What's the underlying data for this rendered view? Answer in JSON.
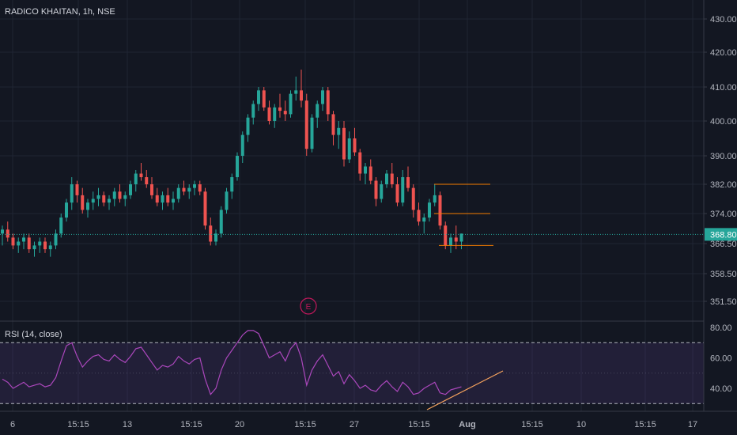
{
  "chart_data": [
    {
      "type": "candlestick",
      "title": "RADICO KHAITAN, 1h, NSE",
      "yaxis": {
        "ticks": [
          "430.00",
          "420.00",
          "410.00",
          "400.00",
          "390.00",
          "382.00",
          "374.00",
          "366.50",
          "358.50",
          "351.50"
        ],
        "tick_values": [
          430,
          420,
          410,
          400,
          390,
          382,
          374,
          366.5,
          358.5,
          351.5
        ]
      },
      "last_price": "368.80",
      "last_price_value": 368.8,
      "colors": {
        "up": "#26a69a",
        "down": "#ef5350",
        "price_line": "#26a69a",
        "levels": "#f57c00",
        "event": "#c2185b"
      },
      "event_marker": "E",
      "horizontal_levels": [
        382,
        374,
        366
      ],
      "candles": [
        [
          369,
          371,
          366,
          370
        ],
        [
          370,
          372,
          367,
          368
        ],
        [
          368,
          369,
          365,
          366
        ],
        [
          366,
          368,
          364,
          367
        ],
        [
          367,
          369,
          365,
          368
        ],
        [
          368,
          369,
          364,
          365
        ],
        [
          365,
          367,
          363,
          366
        ],
        [
          366,
          368,
          364,
          367
        ],
        [
          367,
          368,
          364,
          365
        ],
        [
          365,
          367,
          363,
          366
        ],
        [
          366,
          370,
          365,
          369
        ],
        [
          369,
          374,
          368,
          373
        ],
        [
          373,
          378,
          372,
          377
        ],
        [
          377,
          384,
          375,
          382
        ],
        [
          382,
          383,
          377,
          379
        ],
        [
          379,
          381,
          374,
          375
        ],
        [
          375,
          378,
          373,
          377
        ],
        [
          377,
          380,
          375,
          378
        ],
        [
          378,
          381,
          376,
          379
        ],
        [
          379,
          380,
          376,
          377
        ],
        [
          377,
          379,
          375,
          378
        ],
        [
          378,
          381,
          376,
          380
        ],
        [
          380,
          382,
          377,
          378
        ],
        [
          378,
          380,
          376,
          379
        ],
        [
          379,
          383,
          378,
          382
        ],
        [
          382,
          386,
          380,
          385
        ],
        [
          385,
          388,
          383,
          384
        ],
        [
          384,
          386,
          381,
          382
        ],
        [
          382,
          384,
          378,
          379
        ],
        [
          379,
          381,
          376,
          377
        ],
        [
          377,
          380,
          375,
          379
        ],
        [
          379,
          381,
          376,
          377
        ],
        [
          377,
          380,
          375,
          378
        ],
        [
          378,
          382,
          377,
          381
        ],
        [
          381,
          383,
          379,
          380
        ],
        [
          380,
          382,
          378,
          381
        ],
        [
          381,
          383,
          379,
          382
        ],
        [
          382,
          383,
          379,
          380
        ],
        [
          380,
          381,
          370,
          371
        ],
        [
          371,
          373,
          366,
          367
        ],
        [
          367,
          370,
          366,
          369
        ],
        [
          369,
          376,
          368,
          375
        ],
        [
          375,
          381,
          374,
          380
        ],
        [
          380,
          385,
          378,
          384
        ],
        [
          384,
          391,
          383,
          390
        ],
        [
          390,
          397,
          388,
          396
        ],
        [
          396,
          402,
          394,
          401
        ],
        [
          401,
          406,
          399,
          405
        ],
        [
          405,
          410,
          403,
          409
        ],
        [
          409,
          410,
          403,
          404
        ],
        [
          404,
          406,
          399,
          400
        ],
        [
          400,
          405,
          398,
          404
        ],
        [
          404,
          408,
          401,
          403
        ],
        [
          403,
          406,
          400,
          402
        ],
        [
          402,
          409,
          401,
          408
        ],
        [
          408,
          413,
          406,
          409
        ],
        [
          409,
          415,
          404,
          406
        ],
        [
          406,
          408,
          390,
          392
        ],
        [
          392,
          402,
          391,
          401
        ],
        [
          401,
          406,
          398,
          405
        ],
        [
          405,
          410,
          403,
          409
        ],
        [
          409,
          410,
          400,
          402
        ],
        [
          402,
          403,
          393,
          396
        ],
        [
          396,
          400,
          392,
          398
        ],
        [
          398,
          400,
          387,
          389
        ],
        [
          389,
          397,
          388,
          395
        ],
        [
          395,
          398,
          390,
          391
        ],
        [
          391,
          392,
          383,
          385
        ],
        [
          385,
          388,
          382,
          387
        ],
        [
          387,
          389,
          382,
          383
        ],
        [
          383,
          384,
          376,
          378
        ],
        [
          378,
          383,
          377,
          382
        ],
        [
          382,
          386,
          381,
          385
        ],
        [
          385,
          388,
          381,
          382
        ],
        [
          382,
          384,
          376,
          377
        ],
        [
          377,
          386,
          376,
          384
        ],
        [
          384,
          387,
          380,
          381
        ],
        [
          381,
          382,
          373,
          375
        ],
        [
          375,
          377,
          371,
          372
        ],
        [
          372,
          374,
          369,
          373
        ],
        [
          373,
          378,
          372,
          377
        ],
        [
          377,
          382,
          376,
          379
        ],
        [
          379,
          380,
          370,
          371
        ],
        [
          371,
          372,
          365,
          366
        ],
        [
          366,
          369,
          364,
          368
        ],
        [
          368,
          371,
          365,
          367
        ],
        [
          367,
          369,
          365,
          369
        ]
      ]
    },
    {
      "type": "line",
      "title": "RSI (14, close)",
      "yaxis": {
        "ticks": [
          "80.00",
          "60.00",
          "40.00"
        ],
        "tick_values": [
          80,
          60,
          40
        ]
      },
      "bands": {
        "upper": 70,
        "lower": 30,
        "mid": 50
      },
      "colors": {
        "line": "#ab47bc",
        "band_fill": "#7e57c2",
        "band_line": "#b2b5be",
        "trendline": "#f5a25d"
      },
      "values": [
        46,
        44,
        40,
        42,
        44,
        41,
        42,
        43,
        41,
        42,
        47,
        58,
        68,
        70,
        61,
        54,
        58,
        61,
        62,
        59,
        58,
        62,
        59,
        57,
        61,
        66,
        67,
        62,
        57,
        52,
        55,
        54,
        56,
        61,
        58,
        56,
        59,
        60,
        46,
        36,
        40,
        52,
        60,
        65,
        70,
        75,
        78,
        78,
        76,
        68,
        60,
        62,
        64,
        58,
        66,
        70,
        60,
        42,
        52,
        58,
        62,
        55,
        48,
        51,
        43,
        49,
        45,
        40,
        42,
        39,
        38,
        42,
        45,
        41,
        38,
        44,
        41,
        36,
        37,
        40,
        42,
        44,
        37,
        36,
        39,
        40,
        41
      ]
    }
  ],
  "xaxis": {
    "labels": [
      "6",
      "15:15",
      "13",
      "15:15",
      "20",
      "15:15",
      "27",
      "15:15",
      "Aug",
      "15:15",
      "10",
      "15:15",
      "17"
    ],
    "bold": [
      false,
      false,
      false,
      false,
      false,
      false,
      false,
      false,
      true,
      false,
      false,
      false,
      false
    ]
  }
}
